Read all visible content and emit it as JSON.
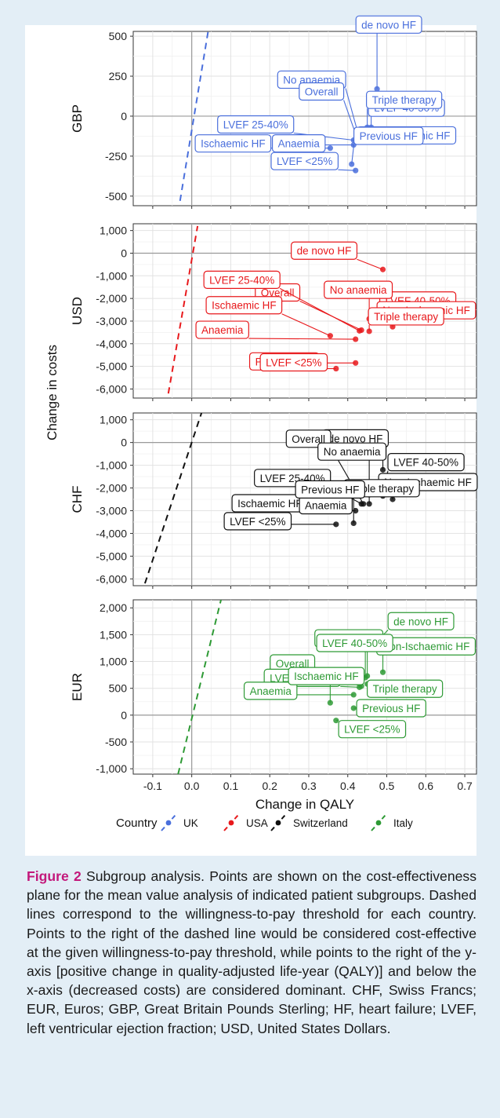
{
  "chart_data": {
    "type": "scatter",
    "xlabel": "Change in QALY",
    "ylabel": "Change in costs",
    "xlim": [
      -0.15,
      0.73
    ],
    "xticks": [
      -0.1,
      0,
      0.1,
      0.2,
      0.3,
      0.4,
      0.5,
      0.6,
      0.7
    ],
    "xtick_labels": [
      "-0.1",
      "0.0",
      "0.1",
      "0.2",
      "0.3",
      "0.4",
      "0.5",
      "0.6",
      "0.7"
    ],
    "grid": true,
    "legend": {
      "position": "bottom",
      "title": "Country",
      "entries": [
        {
          "label": "UK",
          "color": "#4a6fdc"
        },
        {
          "label": "USA",
          "color": "#e8191c"
        },
        {
          "label": "Switzerland",
          "color": "#111111"
        },
        {
          "label": "Italy",
          "color": "#2e9a35"
        }
      ]
    },
    "panels": [
      {
        "strip": "GBP",
        "country": "UK",
        "color": "#4a6fdc",
        "ylim": [
          -560,
          530
        ],
        "yticks": [
          500,
          250,
          0,
          -250,
          -500
        ],
        "ytick_labels": [
          "500",
          "250",
          "0",
          "-250",
          "-500"
        ],
        "wtp_line": [
          [
            -0.03,
            -530
          ],
          [
            0.042,
            530
          ]
        ],
        "points": [
          {
            "label": "de novo HF",
            "x": 0.475,
            "y": 170
          },
          {
            "label": "No anaemia",
            "x": 0.43,
            "y": -140
          },
          {
            "label": "Overall",
            "x": 0.425,
            "y": -145
          },
          {
            "label": "LVEF 40-50%",
            "x": 0.46,
            "y": -70
          },
          {
            "label": "Non-Ischaemic HF",
            "x": 0.45,
            "y": -130
          },
          {
            "label": "LVEF 25-40%",
            "x": 0.415,
            "y": -150
          },
          {
            "label": "Ischaemic HF",
            "x": 0.355,
            "y": -200
          },
          {
            "label": "Anaemia",
            "x": 0.415,
            "y": -180
          },
          {
            "label": "Triple therapy",
            "x": 0.45,
            "y": -70
          },
          {
            "label": "LVEF <25%",
            "x": 0.42,
            "y": -340
          },
          {
            "label": "Previous HF",
            "x": 0.41,
            "y": -300
          }
        ]
      },
      {
        "strip": "USD",
        "country": "USA",
        "color": "#e8191c",
        "ylim": [
          -6400,
          1300
        ],
        "yticks": [
          1000,
          0,
          -1000,
          -2000,
          -3000,
          -4000,
          -5000,
          -6000
        ],
        "ytick_labels": [
          "1,000",
          "0",
          "-1,000",
          "-2,000",
          "-3,000",
          "-4,000",
          "-5,000",
          "-6,000"
        ],
        "wtp_line": [
          [
            -0.06,
            -6200
          ],
          [
            0.015,
            1200
          ]
        ],
        "points": [
          {
            "label": "de novo HF",
            "x": 0.49,
            "y": -720
          },
          {
            "label": "LVEF 40-50%",
            "x": 0.475,
            "y": -2750
          },
          {
            "label": "Overall",
            "x": 0.435,
            "y": -3400
          },
          {
            "label": "No anaemia",
            "x": 0.455,
            "y": -2900
          },
          {
            "label": "Non-Ischaemic HF",
            "x": 0.515,
            "y": -3250
          },
          {
            "label": "LVEF 25-40%",
            "x": 0.43,
            "y": -3430
          },
          {
            "label": "Ischaemic HF",
            "x": 0.355,
            "y": -3650
          },
          {
            "label": "Triple therapy",
            "x": 0.455,
            "y": -3450
          },
          {
            "label": "Anaemia",
            "x": 0.42,
            "y": -3800
          },
          {
            "label": "Previous HF",
            "x": 0.42,
            "y": -4850
          },
          {
            "label": "LVEF <25%",
            "x": 0.37,
            "y": -5100
          }
        ]
      },
      {
        "strip": "CHF",
        "country": "Switzerland",
        "color": "#111111",
        "ylim": [
          -6300,
          1300
        ],
        "yticks": [
          1000,
          0,
          -1000,
          -2000,
          -3000,
          -4000,
          -5000,
          -6000
        ],
        "ytick_labels": [
          "1,000",
          "0",
          "-1,000",
          "-2,000",
          "-3,000",
          "-4,000",
          "-5,000",
          "-6,000"
        ],
        "wtp_line": [
          [
            -0.12,
            -6200
          ],
          [
            0.025,
            1300
          ]
        ],
        "points": [
          {
            "label": "de novo HF",
            "x": 0.49,
            "y": -1200
          },
          {
            "label": "Overall",
            "x": 0.44,
            "y": -2700
          },
          {
            "label": "No anaemia",
            "x": 0.455,
            "y": -2300
          },
          {
            "label": "LVEF 40-50%",
            "x": 0.49,
            "y": -2350
          },
          {
            "label": "Non-Ischaemic HF",
            "x": 0.515,
            "y": -2500
          },
          {
            "label": "LVEF 25-40%",
            "x": 0.435,
            "y": -2700
          },
          {
            "label": "Ischaemic HF",
            "x": 0.355,
            "y": -2950
          },
          {
            "label": "Anaemia",
            "x": 0.42,
            "y": -3000
          },
          {
            "label": "Triple therapy",
            "x": 0.455,
            "y": -2700
          },
          {
            "label": "LVEF <25%",
            "x": 0.37,
            "y": -3600
          },
          {
            "label": "Previous HF",
            "x": 0.415,
            "y": -3550
          }
        ]
      },
      {
        "strip": "EUR",
        "country": "Italy",
        "color": "#2e9a35",
        "ylim": [
          -1100,
          2150
        ],
        "yticks": [
          2000,
          1500,
          1000,
          500,
          0,
          -500,
          -1000
        ],
        "ytick_labels": [
          "2,000",
          "1,500",
          "1,000",
          "500",
          "0",
          "-500",
          "-1,000"
        ],
        "wtp_line": [
          [
            -0.035,
            -1100
          ],
          [
            0.075,
            2150
          ]
        ],
        "points": [
          {
            "label": "de novo HF",
            "x": 0.475,
            "y": 1370
          },
          {
            "label": "No anaemia",
            "x": 0.445,
            "y": 700
          },
          {
            "label": "Non-Ischaemic HF",
            "x": 0.49,
            "y": 800
          },
          {
            "label": "Overall",
            "x": 0.435,
            "y": 540
          },
          {
            "label": "LVEF 40-50%",
            "x": 0.45,
            "y": 730
          },
          {
            "label": "LVEF 25-40%",
            "x": 0.43,
            "y": 520
          },
          {
            "label": "Triple therapy",
            "x": 0.45,
            "y": 580
          },
          {
            "label": "Anaemia",
            "x": 0.415,
            "y": 380
          },
          {
            "label": "Ischaemic HF",
            "x": 0.355,
            "y": 230
          },
          {
            "label": "Previous HF",
            "x": 0.415,
            "y": 130
          },
          {
            "label": "LVEF <25%",
            "x": 0.37,
            "y": -100
          }
        ]
      }
    ]
  },
  "caption": {
    "label": "Figure 2",
    "text": "Subgroup analysis. Points are shown on the cost-effectiveness plane for the mean value analysis of indicated patient subgroups. Dashed lines correspond to the willingness-to-pay threshold for each country. Points to the right of the dashed line would be considered cost-effective at the given willingness-to-pay threshold, while points to the right of the y-axis [positive change in quality-adjusted life-year (QALY)] and below the x-axis (decreased costs) are considered dominant. CHF, Swiss Francs; EUR, Euros; GBP, Great Britain Pounds Sterling; HF, heart failure; LVEF, left ventricular ejection fraction; USD, United States Dollars."
  }
}
